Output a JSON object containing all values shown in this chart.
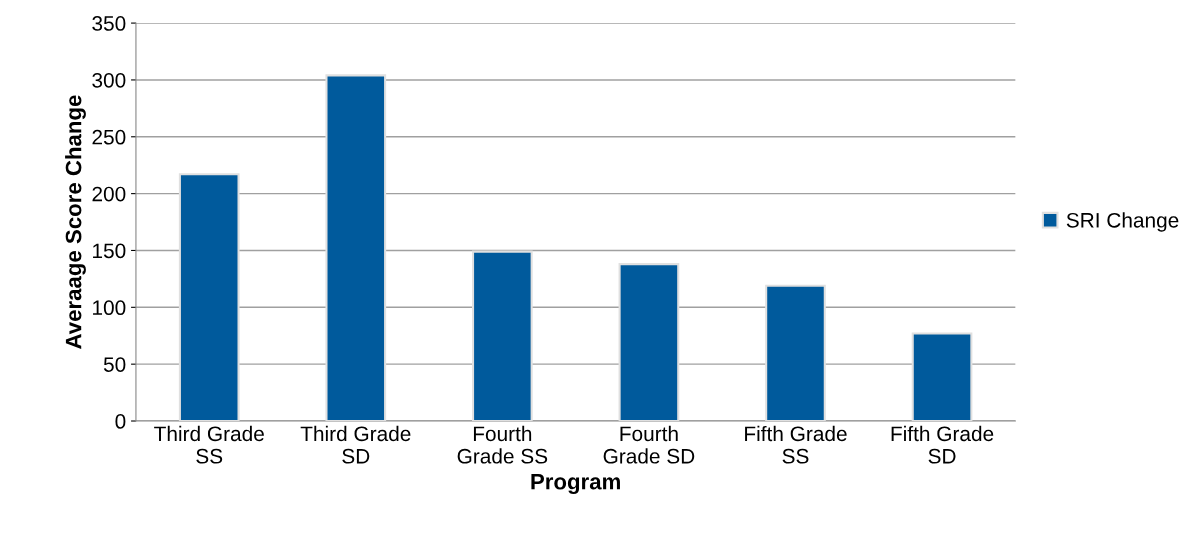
{
  "chart_data": {
    "type": "bar",
    "xlabel": "Program",
    "ylabel": "Averaage Score Change",
    "categories": [
      "Third Grade\nSS",
      "Third Grade\nSD",
      "Fourth\nGrade SS",
      "Fourth\nGrade SD",
      "Fifth Grade\nSS",
      "Fifth Grade\nSD"
    ],
    "series": [
      {
        "name": "SRI Change",
        "color": "#005a9c",
        "values": [
          217,
          304,
          149,
          138,
          119,
          77
        ]
      }
    ],
    "ylim": [
      0,
      350
    ],
    "yticks": [
      0,
      50,
      100,
      150,
      200,
      250,
      300,
      350
    ],
    "grid": "y",
    "legend": "right"
  }
}
